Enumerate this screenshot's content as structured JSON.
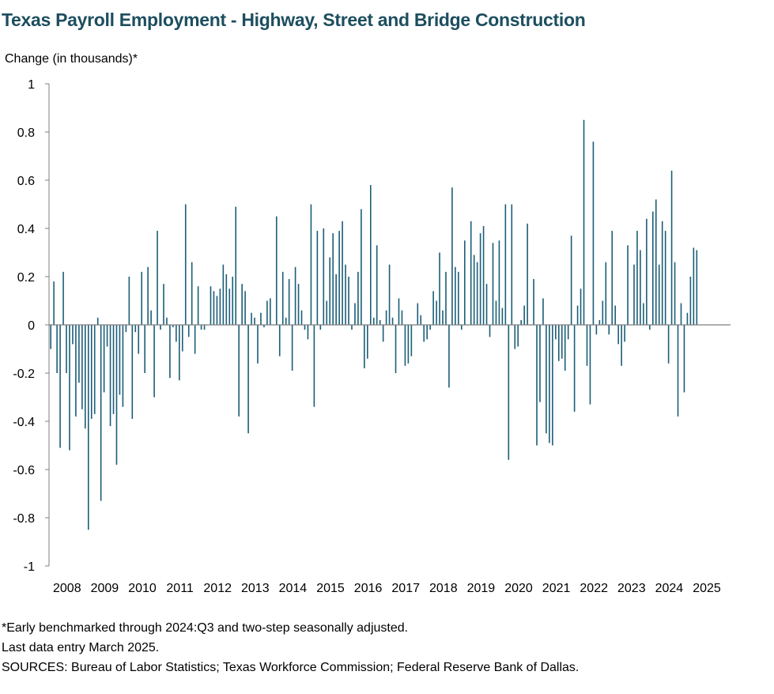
{
  "title": "Texas Payroll Employment - Highway, Street and Bridge Construction",
  "notes": [
    "*Early benchmarked through 2024:Q3 and two-step seasonally adjusted.",
    "Last data entry March 2025.",
    "SOURCES: Bureau of Labor Statistics; Texas Workforce Commission; Federal Reserve Bank of Dallas."
  ],
  "colors": {
    "bar": "#1b5e77",
    "title": "#1d4e5f",
    "axis": "#7f7f7f"
  },
  "chart_data": {
    "type": "bar",
    "title": "Texas Payroll Employment - Highway, Street and Bridge Construction",
    "ylabel": "Change (in thousands)*",
    "xlabel": "",
    "frequency": "monthly",
    "start": "2008-01",
    "end": "2025-03",
    "ylim": [
      -1,
      1
    ],
    "yticks": [
      1,
      0.8,
      0.6,
      0.4,
      0.2,
      0,
      -0.2,
      -0.4,
      -0.6,
      -0.8,
      -1
    ],
    "ytick_labels": [
      "1",
      "0.8",
      "0.6",
      "0.4",
      "0.2",
      "0",
      "-0.2",
      "-0.4",
      "-0.6",
      "-0.8",
      "-1"
    ],
    "xtick_labels": [
      "2008",
      "2009",
      "2010",
      "2011",
      "2012",
      "2013",
      "2014",
      "2015",
      "2016",
      "2017",
      "2018",
      "2019",
      "2020",
      "2021",
      "2022",
      "2023",
      "2024",
      "2025"
    ],
    "grid": false,
    "legend": "none",
    "values": [
      -0.1,
      0.18,
      -0.2,
      -0.51,
      0.22,
      -0.2,
      -0.52,
      -0.08,
      -0.38,
      -0.24,
      -0.35,
      -0.43,
      -0.85,
      -0.39,
      -0.37,
      0.03,
      -0.73,
      -0.28,
      -0.09,
      -0.42,
      -0.37,
      -0.58,
      -0.29,
      -0.34,
      -0.03,
      0.2,
      -0.39,
      -0.03,
      -0.12,
      0.22,
      -0.2,
      0.24,
      0.06,
      -0.3,
      0.39,
      -0.02,
      0.17,
      0.03,
      -0.22,
      -0.01,
      -0.07,
      -0.23,
      -0.11,
      0.5,
      -0.05,
      0.26,
      -0.12,
      0.16,
      -0.02,
      -0.02,
      0.0,
      0.16,
      0.14,
      0.12,
      0.15,
      0.25,
      0.21,
      0.15,
      0.2,
      0.49,
      -0.38,
      0.17,
      0.14,
      -0.45,
      0.05,
      0.03,
      -0.16,
      0.05,
      -0.01,
      0.1,
      0.11,
      0.0,
      0.45,
      -0.13,
      0.22,
      0.03,
      0.19,
      -0.19,
      0.24,
      0.17,
      0.06,
      -0.02,
      -0.06,
      0.5,
      -0.34,
      0.39,
      -0.02,
      0.4,
      0.1,
      0.28,
      0.38,
      0.21,
      0.39,
      0.43,
      0.25,
      0.2,
      -0.02,
      0.09,
      0.22,
      0.48,
      -0.18,
      -0.14,
      0.58,
      0.03,
      0.33,
      0.02,
      -0.07,
      0.06,
      0.25,
      0.03,
      -0.2,
      0.11,
      0.06,
      -0.17,
      -0.16,
      -0.13,
      0.0,
      0.09,
      0.04,
      -0.07,
      -0.06,
      -0.02,
      0.14,
      0.1,
      0.3,
      0.06,
      0.22,
      -0.26,
      0.57,
      0.24,
      0.22,
      -0.02,
      0.35,
      0.0,
      0.43,
      0.29,
      0.26,
      0.38,
      0.41,
      0.17,
      -0.05,
      0.34,
      0.1,
      0.35,
      0.07,
      0.5,
      -0.56,
      0.5,
      -0.1,
      -0.09,
      0.02,
      0.08,
      0.42,
      0.0,
      0.19,
      -0.5,
      -0.32,
      0.11,
      -0.45,
      -0.49,
      -0.5,
      -0.06,
      -0.15,
      -0.14,
      -0.19,
      -0.06,
      0.37,
      -0.36,
      0.08,
      0.15,
      0.85,
      -0.17,
      -0.33,
      0.76,
      -0.04,
      0.02,
      0.1,
      0.26,
      -0.04,
      0.39,
      0.08,
      -0.08,
      -0.17,
      -0.07,
      0.33,
      0.0,
      0.25,
      0.39,
      0.31,
      0.09,
      0.44,
      -0.02,
      0.47,
      0.52,
      0.25,
      0.43,
      0.39,
      -0.16,
      0.64,
      0.26,
      -0.38,
      0.09,
      -0.28,
      0.05,
      0.2,
      0.32,
      0.31
    ]
  }
}
